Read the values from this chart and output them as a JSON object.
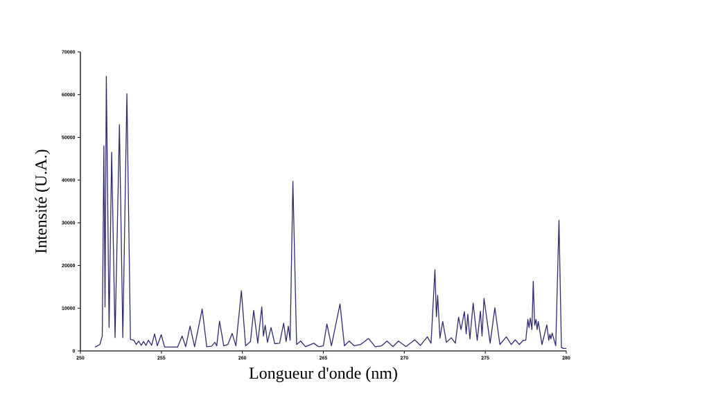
{
  "chart_data": {
    "type": "line",
    "xlabel": "Longueur d'onde (nm)",
    "ylabel": "Intensité (U.A.)",
    "xlim": [
      250,
      280
    ],
    "ylim": [
      0,
      70000
    ],
    "xticks": [
      250,
      255,
      260,
      265,
      270,
      275,
      280
    ],
    "yticks": [
      0,
      10000,
      20000,
      30000,
      40000,
      50000,
      60000,
      70000
    ],
    "series": [
      {
        "color": "#2e2a6e",
        "x": [
          250.9,
          251.2,
          251.35,
          251.45,
          251.52,
          251.6,
          251.77,
          251.93,
          252.14,
          252.41,
          252.62,
          252.87,
          253.09,
          253.3,
          253.45,
          253.6,
          253.75,
          253.9,
          254.05,
          254.2,
          254.4,
          254.58,
          254.75,
          254.99,
          255.2,
          256.0,
          256.28,
          256.5,
          256.77,
          257.05,
          257.52,
          257.8,
          258.1,
          258.3,
          258.42,
          258.59,
          258.85,
          259.1,
          259.37,
          259.6,
          259.94,
          260.2,
          260.5,
          260.7,
          260.95,
          261.2,
          261.3,
          261.41,
          261.55,
          261.77,
          262.0,
          262.3,
          262.55,
          262.7,
          262.84,
          262.95,
          263.12,
          263.35,
          263.6,
          263.9,
          264.41,
          264.7,
          265.0,
          265.22,
          265.5,
          266.03,
          266.3,
          266.6,
          266.9,
          267.3,
          267.79,
          268.2,
          268.6,
          268.93,
          269.3,
          269.64,
          270.1,
          270.64,
          271.0,
          271.42,
          271.65,
          271.89,
          271.98,
          272.06,
          272.2,
          272.37,
          272.6,
          272.9,
          273.15,
          273.35,
          273.5,
          273.71,
          273.82,
          273.92,
          274.05,
          274.25,
          274.5,
          274.7,
          274.8,
          274.92,
          275.3,
          275.59,
          275.9,
          276.3,
          276.6,
          276.85,
          277.1,
          277.35,
          277.5,
          277.63,
          277.7,
          277.78,
          277.88,
          277.96,
          278.05,
          278.13,
          278.2,
          278.27,
          278.5,
          278.8,
          278.92,
          278.99,
          279.05,
          279.13,
          279.35,
          279.55,
          279.7,
          279.82,
          280
        ],
        "values": [
          900,
          1500,
          3500,
          48000,
          10300,
          64300,
          5500,
          46500,
          3100,
          53000,
          3100,
          60200,
          2700,
          2500,
          1500,
          2300,
          1300,
          2200,
          1300,
          2500,
          1300,
          4000,
          1200,
          3800,
          900,
          900,
          3500,
          1000,
          5800,
          1000,
          9800,
          1000,
          1100,
          2000,
          1200,
          7000,
          1200,
          1500,
          4100,
          1200,
          14100,
          1200,
          2200,
          9500,
          1800,
          10300,
          3500,
          6000,
          2000,
          5500,
          1700,
          1800,
          6500,
          2200,
          5800,
          2500,
          39700,
          1500,
          2300,
          1000,
          1800,
          1000,
          1200,
          6300,
          1200,
          11000,
          1200,
          2300,
          1200,
          1500,
          2900,
          1000,
          1200,
          2300,
          1000,
          2300,
          1000,
          2600,
          1300,
          3300,
          1800,
          19000,
          8000,
          13000,
          3000,
          6900,
          2000,
          3100,
          1800,
          7900,
          5000,
          9200,
          4000,
          8600,
          2800,
          11200,
          2500,
          9300,
          3500,
          12300,
          1800,
          10100,
          1500,
          3300,
          1500,
          2600,
          1500,
          2500,
          2500,
          7400,
          5500,
          7700,
          5000,
          16300,
          6000,
          7400,
          5000,
          6900,
          1500,
          6100,
          2500,
          3900,
          2800,
          4200,
          1200,
          30600,
          800,
          600,
          600
        ]
      }
    ]
  }
}
